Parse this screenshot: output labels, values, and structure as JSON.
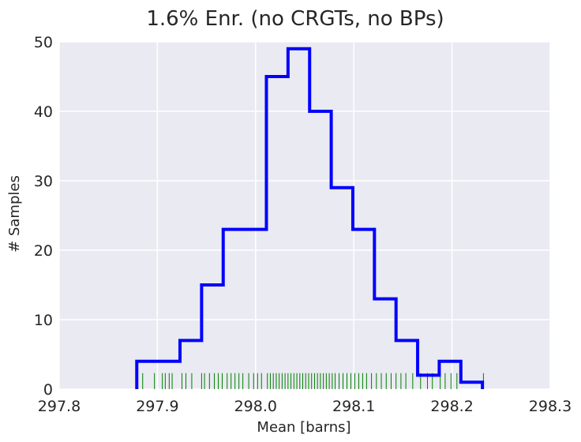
{
  "chart_data": {
    "type": "histogram",
    "title": "1.6% Enr. (no CRGTs, no BPs)",
    "xlabel": "Mean [barns]",
    "ylabel": "# Samples",
    "xlim": [
      297.8,
      298.3
    ],
    "ylim": [
      0,
      50
    ],
    "xticks": [
      "297.8",
      "297.9",
      "298.0",
      "298.1",
      "298.2",
      "298.3"
    ],
    "yticks": [
      "0",
      "10",
      "20",
      "30",
      "40",
      "50"
    ],
    "grid": true,
    "colors": {
      "background": "#eaeaf2",
      "grid": "#ffffff",
      "histogram": "#0000ff",
      "rug": "#008000"
    },
    "bin_edges": [
      297.879,
      297.901,
      297.923,
      297.945,
      297.967,
      297.989,
      298.011,
      298.033,
      298.055,
      298.077,
      298.099,
      298.121,
      298.143,
      298.165,
      298.187,
      298.209,
      298.231
    ],
    "counts": [
      4,
      4,
      7,
      15,
      23,
      23,
      45,
      49,
      40,
      29,
      23,
      13,
      7,
      2,
      4,
      1
    ],
    "rug_x": [
      297.885,
      297.897,
      297.905,
      297.908,
      297.912,
      297.915,
      297.925,
      297.929,
      297.935,
      297.945,
      297.948,
      297.953,
      297.958,
      297.962,
      297.966,
      297.971,
      297.975,
      297.979,
      297.983,
      297.987,
      297.993,
      297.998,
      298.002,
      298.006,
      298.012,
      298.015,
      298.018,
      298.021,
      298.024,
      298.027,
      298.03,
      298.033,
      298.036,
      298.039,
      298.042,
      298.045,
      298.048,
      298.051,
      298.054,
      298.057,
      298.06,
      298.063,
      298.066,
      298.069,
      298.072,
      298.075,
      298.078,
      298.081,
      298.085,
      298.089,
      298.093,
      298.097,
      298.101,
      298.105,
      298.109,
      298.113,
      298.118,
      298.123,
      298.128,
      298.133,
      298.138,
      298.143,
      298.148,
      298.153,
      298.16,
      298.168,
      298.175,
      298.18,
      298.188,
      298.193,
      298.199,
      298.205,
      298.232
    ]
  }
}
